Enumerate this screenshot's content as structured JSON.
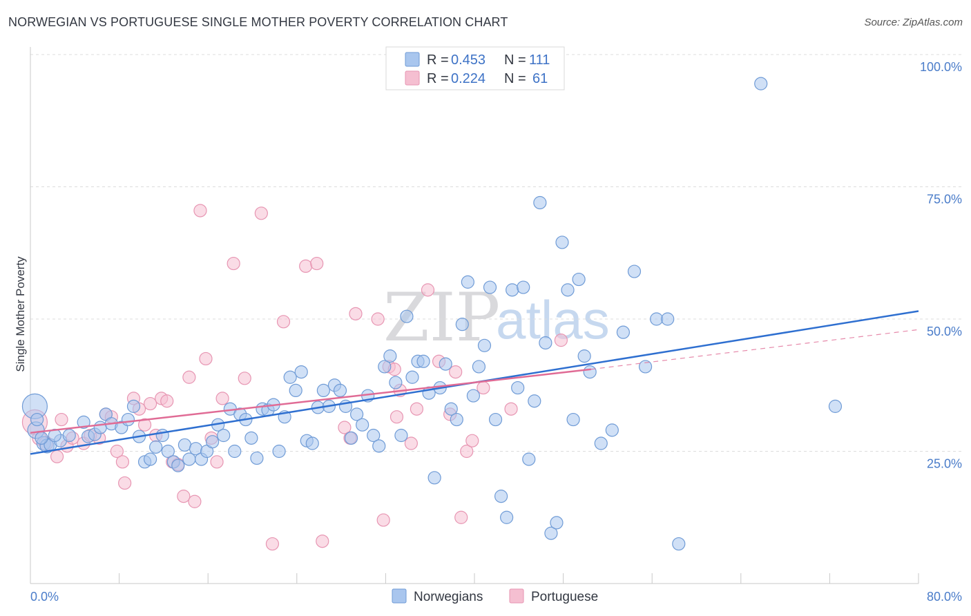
{
  "header": {
    "title": "NORWEGIAN VS PORTUGUESE SINGLE MOTHER POVERTY CORRELATION CHART",
    "source": "Source: ZipAtlas.com"
  },
  "watermark": {
    "part1": "ZIP",
    "part2": "atlas"
  },
  "chart_data": {
    "type": "scatter",
    "xlabel": "",
    "ylabel": "Single Mother Poverty",
    "xlim": [
      0,
      80
    ],
    "ylim": [
      0,
      100
    ],
    "x_tick_labels": [
      "0.0%",
      "80.0%"
    ],
    "y_ticks": [
      {
        "value": 25,
        "label": "25.0%"
      },
      {
        "value": 50,
        "label": "50.0%"
      },
      {
        "value": 75,
        "label": "75.0%"
      },
      {
        "value": 100,
        "label": "100.0%"
      }
    ],
    "grid": true,
    "legend_position": "top-center",
    "legend": [
      {
        "r_label": "R =",
        "r": "0.453",
        "n_label": "N =",
        "n": "111"
      },
      {
        "r_label": "R =",
        "r": "0.224",
        "n_label": "N =",
        "n": "61"
      }
    ],
    "bottom_legend": [
      "Norwegians",
      "Portuguese"
    ],
    "colors": {
      "norwegians_fill": "#a9c6ee",
      "norwegians_stroke": "#6f9bd6",
      "norwegians_line": "#2e6fd0",
      "portuguese_fill": "#f5bfd1",
      "portuguese_stroke": "#e795b2",
      "portuguese_line": "#e06b95",
      "axis_text": "#4a7cc9"
    },
    "series": [
      {
        "name": "Norwegians",
        "trend": {
          "x": [
            0,
            80
          ],
          "y": [
            24.5,
            51.5
          ],
          "style": "solid"
        },
        "points": [
          [
            0.4,
            33.5
          ],
          [
            0.5,
            29
          ],
          [
            1.2,
            26.5
          ],
          [
            1.5,
            26
          ],
          [
            1.8,
            26.2
          ],
          [
            2.7,
            27
          ],
          [
            3.5,
            28
          ],
          [
            4.8,
            30.5
          ],
          [
            5.2,
            27.8
          ],
          [
            5.8,
            28.2
          ],
          [
            6.3,
            29.5
          ],
          [
            6.8,
            32
          ],
          [
            7.3,
            30.2
          ],
          [
            8.2,
            29.5
          ],
          [
            8.8,
            31
          ],
          [
            9.3,
            33.5
          ],
          [
            9.8,
            27.8
          ],
          [
            10.3,
            23
          ],
          [
            10.8,
            23.5
          ],
          [
            11.3,
            25.8
          ],
          [
            11.9,
            28
          ],
          [
            12.4,
            25
          ],
          [
            12.9,
            23
          ],
          [
            13.3,
            22.3
          ],
          [
            13.9,
            26.2
          ],
          [
            14.3,
            23.5
          ],
          [
            14.9,
            25.5
          ],
          [
            15.4,
            23.5
          ],
          [
            15.9,
            25
          ],
          [
            16.4,
            26.8
          ],
          [
            16.9,
            30
          ],
          [
            17.4,
            28
          ],
          [
            18.0,
            33
          ],
          [
            18.4,
            25
          ],
          [
            18.9,
            32
          ],
          [
            19.4,
            31
          ],
          [
            19.9,
            27.5
          ],
          [
            20.4,
            23.7
          ],
          [
            20.9,
            33
          ],
          [
            21.4,
            32.8
          ],
          [
            21.9,
            33.8
          ],
          [
            22.4,
            25
          ],
          [
            22.9,
            31.5
          ],
          [
            23.4,
            39
          ],
          [
            23.9,
            36.5
          ],
          [
            24.4,
            40
          ],
          [
            24.9,
            27
          ],
          [
            25.4,
            26.5
          ],
          [
            25.9,
            33.3
          ],
          [
            26.4,
            36.5
          ],
          [
            26.9,
            33.5
          ],
          [
            27.4,
            37.5
          ],
          [
            27.9,
            36.5
          ],
          [
            28.4,
            33.5
          ],
          [
            28.9,
            27.5
          ],
          [
            29.4,
            32
          ],
          [
            29.9,
            30
          ],
          [
            30.4,
            35.5
          ],
          [
            30.9,
            28
          ],
          [
            31.4,
            26
          ],
          [
            31.9,
            41
          ],
          [
            32.4,
            43
          ],
          [
            32.9,
            38
          ],
          [
            33.4,
            28
          ],
          [
            33.9,
            50.5
          ],
          [
            34.4,
            39
          ],
          [
            34.9,
            42
          ],
          [
            35.4,
            42
          ],
          [
            35.9,
            36
          ],
          [
            36.4,
            20
          ],
          [
            36.9,
            37
          ],
          [
            37.4,
            41.5
          ],
          [
            37.9,
            33
          ],
          [
            38.4,
            31
          ],
          [
            38.9,
            49
          ],
          [
            39.4,
            57
          ],
          [
            39.9,
            35.5
          ],
          [
            40.4,
            41
          ],
          [
            40.9,
            45
          ],
          [
            41.4,
            56
          ],
          [
            41.9,
            31
          ],
          [
            42.4,
            16.5
          ],
          [
            42.9,
            12.5
          ],
          [
            43.4,
            55.5
          ],
          [
            43.9,
            37
          ],
          [
            44.4,
            56
          ],
          [
            44.9,
            23.5
          ],
          [
            45.4,
            34.5
          ],
          [
            45.9,
            72
          ],
          [
            46.4,
            45.5
          ],
          [
            46.9,
            9.5
          ],
          [
            47.4,
            11.5
          ],
          [
            47.9,
            64.5
          ],
          [
            48.4,
            55.5
          ],
          [
            48.9,
            31
          ],
          [
            49.4,
            57.5
          ],
          [
            49.9,
            43
          ],
          [
            50.4,
            40
          ],
          [
            51.4,
            26.5
          ],
          [
            52.4,
            29
          ],
          [
            53.4,
            47.5
          ],
          [
            54.4,
            59
          ],
          [
            55.4,
            41
          ],
          [
            56.4,
            50
          ],
          [
            57.4,
            50
          ],
          [
            58.4,
            7.5
          ],
          [
            65.8,
            94.5
          ],
          [
            72.5,
            33.5
          ],
          [
            0.6,
            31
          ],
          [
            1.0,
            27.5
          ],
          [
            2.2,
            28
          ]
        ],
        "radius": [
          18,
          12,
          10,
          10,
          9,
          9,
          9,
          9,
          9,
          9,
          9,
          9,
          9,
          9,
          9,
          9,
          9,
          9,
          9,
          9,
          9,
          9,
          9,
          9,
          9,
          9,
          9,
          9,
          9,
          9,
          9,
          9,
          9,
          9,
          9,
          9,
          9,
          9,
          9,
          9,
          9,
          9,
          9,
          9,
          9,
          9,
          9,
          9,
          9,
          9,
          9,
          9,
          9,
          9,
          9,
          9,
          9,
          9,
          9,
          9,
          9,
          9,
          9,
          9,
          9,
          9,
          9,
          9,
          9,
          9,
          9,
          9,
          9,
          9,
          9,
          9,
          9,
          9,
          9,
          9,
          9,
          9,
          9,
          9,
          9,
          9,
          9,
          9,
          9,
          9,
          9,
          9,
          9,
          9,
          9,
          9,
          9,
          9,
          9,
          9,
          9,
          9,
          9,
          9,
          9,
          9,
          9,
          9,
          9,
          9,
          9
        ]
      },
      {
        "name": "Portuguese",
        "trend": {
          "x": [
            0,
            50.5
          ],
          "y": [
            28.5,
            40.5
          ],
          "style": "solid",
          "extension": {
            "x": [
              50.5,
              80
            ],
            "y": [
              40.5,
              48
            ]
          }
        },
        "points": [
          [
            0.4,
            30.5
          ],
          [
            0.8,
            27.5
          ],
          [
            1.4,
            26.5
          ],
          [
            2.4,
            24
          ],
          [
            2.8,
            31
          ],
          [
            3.3,
            26
          ],
          [
            3.8,
            27.5
          ],
          [
            4.8,
            26.5
          ],
          [
            5.4,
            28
          ],
          [
            6.2,
            27.5
          ],
          [
            6.8,
            32
          ],
          [
            7.3,
            31.5
          ],
          [
            7.8,
            25
          ],
          [
            8.3,
            23
          ],
          [
            8.5,
            19
          ],
          [
            9.3,
            35
          ],
          [
            9.8,
            33
          ],
          [
            10.3,
            30
          ],
          [
            10.8,
            34
          ],
          [
            11.3,
            28
          ],
          [
            11.8,
            35
          ],
          [
            12.3,
            34.5
          ],
          [
            12.8,
            23
          ],
          [
            13.3,
            22.5
          ],
          [
            13.8,
            16.5
          ],
          [
            14.3,
            39
          ],
          [
            14.8,
            15.5
          ],
          [
            15.3,
            70.5
          ],
          [
            15.8,
            42.5
          ],
          [
            16.3,
            27.5
          ],
          [
            16.8,
            23
          ],
          [
            17.3,
            35
          ],
          [
            18.3,
            60.5
          ],
          [
            19.3,
            38.8
          ],
          [
            20.8,
            70
          ],
          [
            21.8,
            7.5
          ],
          [
            22.8,
            49.5
          ],
          [
            24.8,
            60
          ],
          [
            25.8,
            60.5
          ],
          [
            26.3,
            8
          ],
          [
            28.3,
            29.5
          ],
          [
            28.8,
            27.5
          ],
          [
            29.3,
            51
          ],
          [
            31.3,
            50
          ],
          [
            31.8,
            12
          ],
          [
            32.3,
            41
          ],
          [
            32.8,
            40.5
          ],
          [
            33.3,
            36.5
          ],
          [
            34.3,
            26.5
          ],
          [
            34.8,
            33
          ],
          [
            35.8,
            55.5
          ],
          [
            36.8,
            42
          ],
          [
            37.8,
            32
          ],
          [
            38.3,
            40
          ],
          [
            38.8,
            12.5
          ],
          [
            39.3,
            25
          ],
          [
            39.8,
            27
          ],
          [
            40.8,
            37
          ],
          [
            43.3,
            33
          ],
          [
            47.8,
            46
          ],
          [
            33.0,
            31.5
          ]
        ],
        "radius": [
          18,
          10,
          10,
          9,
          9,
          9,
          9,
          9,
          9,
          9,
          9,
          9,
          9,
          9,
          9,
          9,
          9,
          9,
          9,
          9,
          9,
          9,
          9,
          9,
          9,
          9,
          9,
          9,
          9,
          9,
          9,
          9,
          9,
          9,
          9,
          9,
          9,
          9,
          9,
          9,
          9,
          9,
          9,
          9,
          9,
          9,
          9,
          9,
          9,
          9,
          9,
          9,
          9,
          9,
          9,
          9,
          9,
          9,
          9,
          9,
          9
        ]
      }
    ]
  }
}
